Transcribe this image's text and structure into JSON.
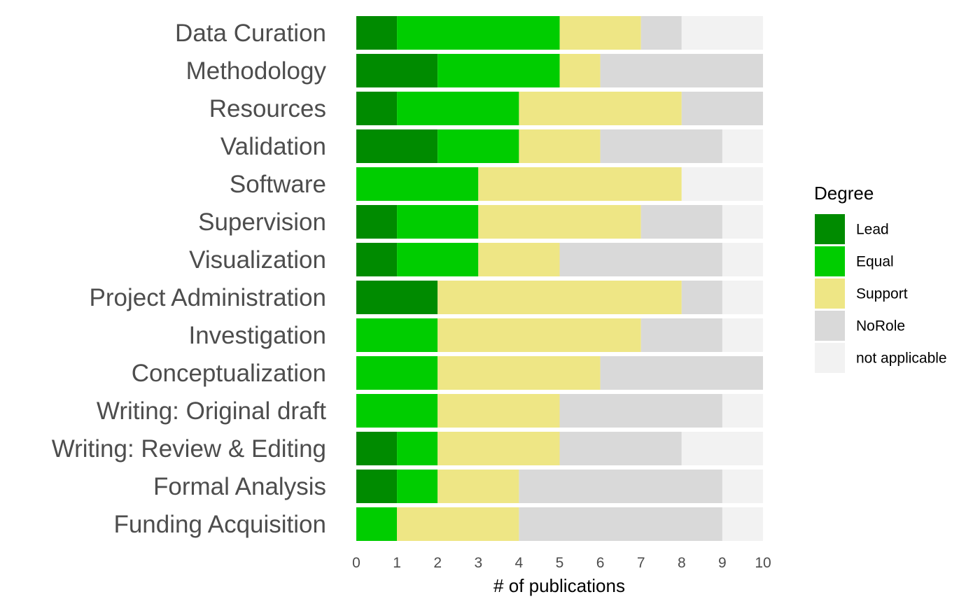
{
  "chart_data": {
    "type": "bar",
    "orientation": "horizontal",
    "stacked": true,
    "categories": [
      "Data Curation",
      "Methodology",
      "Resources",
      "Validation",
      "Software",
      "Supervision",
      "Visualization",
      "Project Administration",
      "Investigation",
      "Conceptualization",
      "Writing: Original draft",
      "Writing: Review & Editing",
      "Formal Analysis",
      "Funding Acquisition"
    ],
    "series": [
      {
        "name": "Lead",
        "color": "#008b00",
        "values": [
          1,
          2,
          1,
          2,
          0,
          1,
          1,
          2,
          0,
          0,
          0,
          1,
          1,
          0
        ]
      },
      {
        "name": "Equal",
        "color": "#00cd00",
        "values": [
          4,
          3,
          3,
          2,
          3,
          2,
          2,
          0,
          2,
          2,
          2,
          1,
          1,
          1
        ]
      },
      {
        "name": "Support",
        "color": "#eee685",
        "values": [
          2,
          1,
          4,
          2,
          5,
          4,
          2,
          6,
          5,
          4,
          3,
          3,
          2,
          3
        ]
      },
      {
        "name": "NoRole",
        "color": "#d9d9d9",
        "values": [
          1,
          4,
          2,
          3,
          0,
          2,
          4,
          1,
          2,
          4,
          4,
          3,
          5,
          5
        ]
      },
      {
        "name": "not applicable",
        "color": "#f2f2f2",
        "values": [
          2,
          0,
          0,
          1,
          2,
          1,
          1,
          1,
          1,
          0,
          1,
          2,
          1,
          1
        ]
      }
    ],
    "xlabel": "# of publications",
    "ylabel": "",
    "xlim": [
      0,
      10
    ],
    "x_ticks": [
      "0",
      "1",
      "2",
      "3",
      "4",
      "5",
      "6",
      "7",
      "8",
      "9",
      "10"
    ],
    "legend_title": "Degree",
    "legend_position": "right",
    "grid": false
  }
}
